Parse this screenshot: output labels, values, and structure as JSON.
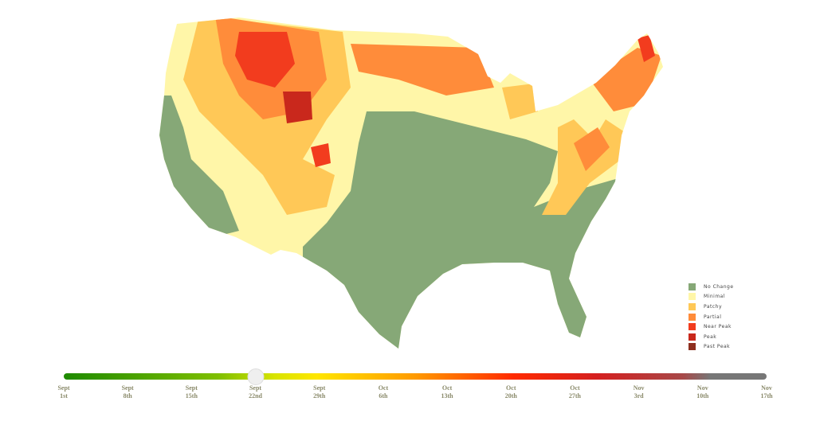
{
  "legend": {
    "items": [
      {
        "label": "No Change",
        "color": "#86a877"
      },
      {
        "label": "Minimal",
        "color": "#fff6a8"
      },
      {
        "label": "Patchy",
        "color": "#ffc857"
      },
      {
        "label": "Partial",
        "color": "#ff8c3a"
      },
      {
        "label": "Near Peak",
        "color": "#f23c1e"
      },
      {
        "label": "Peak",
        "color": "#c9281c"
      },
      {
        "label": "Past Peak",
        "color": "#8e2f1f"
      }
    ]
  },
  "slider": {
    "selected": "Sept 22nd",
    "selected_index": 3,
    "ticks": [
      {
        "month": "Sept",
        "day": "1st"
      },
      {
        "month": "Sept",
        "day": "8th"
      },
      {
        "month": "Sept",
        "day": "15th"
      },
      {
        "month": "Sept",
        "day": "22nd"
      },
      {
        "month": "Sept",
        "day": "29th"
      },
      {
        "month": "Oct",
        "day": "6th"
      },
      {
        "month": "Oct",
        "day": "13th"
      },
      {
        "month": "Oct",
        "day": "20th"
      },
      {
        "month": "Oct",
        "day": "27th"
      },
      {
        "month": "Nov",
        "day": "3rd"
      },
      {
        "month": "Nov",
        "day": "10th"
      },
      {
        "month": "Nov",
        "day": "17th"
      }
    ]
  }
}
